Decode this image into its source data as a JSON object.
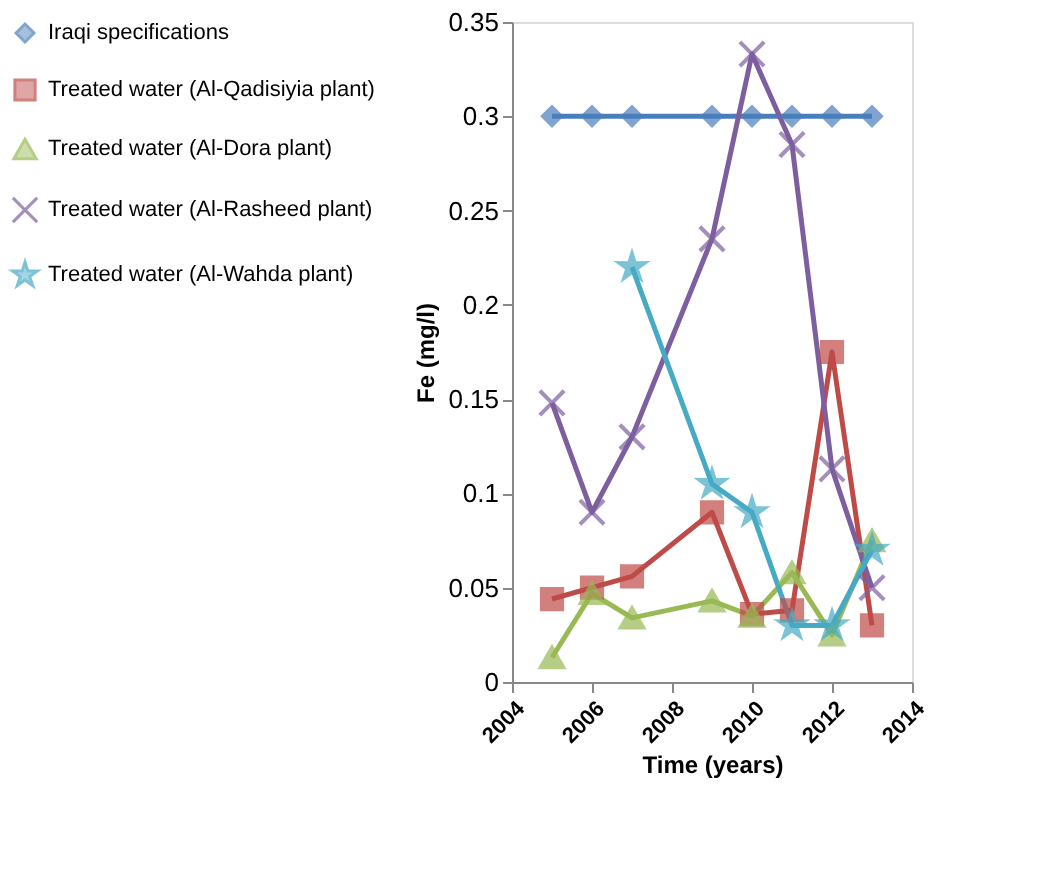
{
  "chart_data": {
    "type": "line",
    "xlabel": "Time (years)",
    "ylabel": "Fe (mg/l)",
    "x": [
      2005,
      2006,
      2007,
      2009,
      2010,
      2011,
      2012,
      2013
    ],
    "series": [
      {
        "name": "Iraqi specifications",
        "color": "#4a7ebb",
        "marker": "diamond",
        "values": [
          0.3,
          0.3,
          0.3,
          0.3,
          0.3,
          0.3,
          0.3,
          0.3
        ]
      },
      {
        "name": "Treated water (Al-Qadisiyia plant)",
        "color": "#be4b48",
        "marker": "square",
        "values": [
          0.044,
          0.05,
          0.056,
          0.09,
          0.036,
          0.038,
          0.175,
          0.03
        ]
      },
      {
        "name": "Treated water (Al-Dora plant)",
        "color": "#98b954",
        "marker": "triangle",
        "values": [
          0.013,
          0.047,
          0.034,
          0.043,
          0.035,
          0.058,
          0.025,
          0.075
        ]
      },
      {
        "name": "Treated water (Al-Rasheed plant)",
        "color": "#7d5fa0",
        "marker": "cross",
        "values": [
          0.148,
          0.09,
          0.13,
          0.235,
          0.333,
          0.285,
          0.113,
          0.05
        ]
      },
      {
        "name": "Treated water (Al-Wahda plant)",
        "color": "#46aac5",
        "marker": "star",
        "values": [
          null,
          null,
          0.22,
          0.105,
          0.09,
          0.03,
          0.03,
          0.07
        ]
      }
    ],
    "xlim": [
      2004,
      2014
    ],
    "xticks": [
      2004,
      2006,
      2008,
      2010,
      2012,
      2014
    ],
    "ylim": [
      0,
      0.35
    ],
    "yticks": [
      0,
      0.05,
      0.1,
      0.15,
      0.2,
      0.25,
      0.3,
      0.35
    ],
    "grid": false,
    "legend": "left",
    "line_style": "solid"
  }
}
